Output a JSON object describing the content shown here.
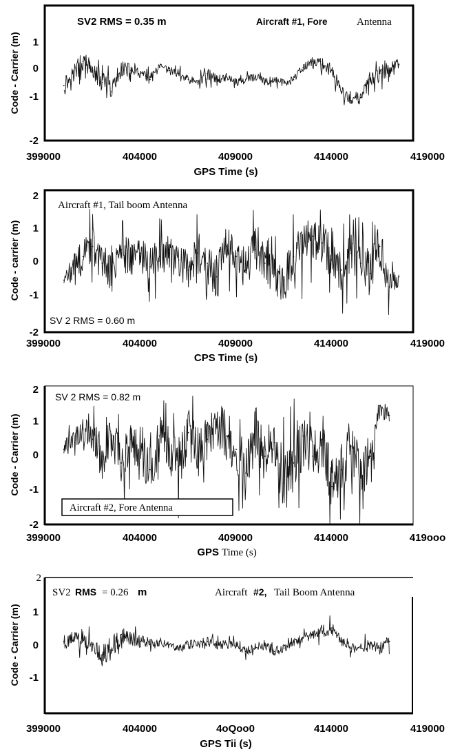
{
  "charts": [
    {
      "note_left": "SV2  RMS = 0.35 m",
      "note_right_prefix": "Aircraft #1, Fore",
      "note_right_suffix": "Antenna",
      "ylabel": "Code - Carrier  (m)",
      "xlabel": "GPS Time (s)",
      "yticks": [
        "-2",
        "-1",
        "0",
        "1"
      ],
      "xticks": [
        "399000",
        "404000",
        "409000",
        "414000",
        "419000"
      ]
    },
    {
      "note_top": "Aircraft #1, Tail boom Antenna",
      "note_bottom": "SV 2  RMS = 0.60 m",
      "ylabel": "Code - carrier (m)",
      "xlabel": "CPS Time (s)",
      "yticks": [
        "-2",
        "-1",
        "0",
        "1",
        "2"
      ],
      "xticks": [
        "399000",
        "404000",
        "409000",
        "414000",
        "419000"
      ]
    },
    {
      "note_top": "SV 2 RMS = 0.82 m",
      "note_box": "Aircraft #2, Fore Antenna",
      "ylabel": "Code - Carrier  (m)",
      "xlabel_prefix": "GPS",
      "xlabel_suffix": "Time (s)",
      "yticks": [
        "-2",
        "-1",
        "0",
        "1",
        "2"
      ],
      "xticks": [
        "399000",
        "404000",
        "409000",
        "414000",
        "419ooo"
      ]
    },
    {
      "note_left_prefix": "SV2",
      "note_left_mid": "RMS",
      "note_left_val": "= 0.26",
      "note_left_unit": "m",
      "note_right_prefix": "Aircraft",
      "note_right_mid": "#2,",
      "note_right_suffix": "Tail Boom Antenna",
      "ylabel": "Code - Carrier (m)",
      "xlabel": "GPS  Tii  (s)",
      "yticks": [
        "-1",
        "0",
        "1",
        "2"
      ],
      "xticks": [
        "399000",
        "404000",
        "4oQoo0",
        "414000",
        "419000"
      ]
    }
  ],
  "chart_data": [
    {
      "type": "line",
      "title": "SV2  RMS = 0.35 m  Aircraft #1, Fore Antenna",
      "xlabel": "GPS Time (s)",
      "ylabel": "Code - Carrier  (m)",
      "xlim": [
        399000,
        419000
      ],
      "ylim": [
        -2,
        2
      ],
      "grid": false,
      "series": [
        {
          "x": [
            400000,
            401000,
            401500,
            402000,
            402500,
            403000,
            403500,
            404000,
            404500,
            405000,
            405500,
            406000,
            406500,
            407000,
            407500,
            408000,
            408500,
            409000,
            409500,
            410000,
            410500,
            411000,
            411500,
            412000,
            412500,
            413000,
            413500,
            414000,
            414500,
            415000,
            415500,
            416000,
            416500,
            417000,
            417500
          ],
          "y": [
            -0.2,
            0.6,
            0.3,
            -0.1,
            -0.4,
            0.4,
            0.3,
            0.2,
            0.0,
            0.4,
            0.3,
            0.2,
            0.0,
            -0.1,
            0.2,
            0.0,
            0.1,
            -0.1,
            0.0,
            0.1,
            -0.1,
            0.0,
            -0.1,
            0.0,
            0.4,
            0.6,
            0.5,
            0.3,
            -0.4,
            -0.7,
            -0.6,
            0.0,
            0.2,
            0.3,
            0.5
          ],
          "spread": [
            0.5,
            0.5,
            0.4,
            0.5,
            0.6,
            0.4,
            0.3,
            0.2,
            0.3,
            0.2,
            0.2,
            0.2,
            0.2,
            0.2,
            0.3,
            0.2,
            0.2,
            0.2,
            0.2,
            0.2,
            0.2,
            0.2,
            0.2,
            0.2,
            0.2,
            0.2,
            0.3,
            0.3,
            0.3,
            0.2,
            0.3,
            0.4,
            0.4,
            0.4,
            0.4
          ]
        }
      ]
    },
    {
      "type": "line",
      "title": "Aircraft #1, Tail boom Antenna  SV 2  RMS = 0.60 m",
      "xlabel": "CPS Time (s)",
      "ylabel": "Code - carrier (m)",
      "xlim": [
        399000,
        419000
      ],
      "ylim": [
        -2,
        2
      ],
      "grid": false,
      "series": [
        {
          "x": [
            400000,
            401000,
            401500,
            402000,
            402500,
            403000,
            403500,
            404000,
            404500,
            405000,
            405500,
            406000,
            406500,
            407000,
            407500,
            408000,
            408500,
            409000,
            409500,
            410000,
            410500,
            411000,
            411500,
            412000,
            412500,
            413000,
            413500,
            414000,
            414500,
            415000,
            415500,
            416000,
            416500,
            417000,
            417500
          ],
          "y": [
            -0.5,
            0.2,
            0.5,
            0.0,
            -0.3,
            0.4,
            0.2,
            0.3,
            -0.1,
            0.2,
            0.4,
            0.1,
            -0.2,
            0.3,
            0.0,
            -0.4,
            0.5,
            0.2,
            -0.2,
            0.4,
            0.0,
            -0.3,
            -0.5,
            0.2,
            0.4,
            0.8,
            0.6,
            0.1,
            -0.2,
            0.3,
            0.0,
            -0.3,
            0.5,
            -0.7,
            -0.4
          ],
          "spread": [
            0.3,
            0.8,
            0.8,
            0.8,
            0.8,
            0.9,
            0.8,
            0.7,
            0.8,
            0.8,
            0.9,
            0.8,
            0.8,
            0.9,
            0.9,
            1.0,
            0.9,
            0.8,
            0.9,
            0.9,
            0.8,
            0.9,
            1.0,
            0.9,
            1.0,
            1.0,
            0.9,
            0.9,
            0.9,
            0.9,
            0.9,
            1.0,
            1.0,
            0.6,
            0.5
          ]
        }
      ]
    },
    {
      "type": "line",
      "title": "SV 2 RMS = 0.82 m  Aircraft #2, Fore Antenna",
      "xlabel": "GPS Time (s)",
      "ylabel": "Code - Carrier  (m)",
      "xlim": [
        399000,
        419000
      ],
      "ylim": [
        -2,
        2
      ],
      "grid": false,
      "series": [
        {
          "x": [
            400000,
            401000,
            401500,
            402000,
            402500,
            403000,
            403500,
            404000,
            404500,
            405000,
            405500,
            406000,
            406500,
            407000,
            407500,
            408000,
            408500,
            409000,
            409500,
            410000,
            410500,
            411000,
            411500,
            412000,
            412500,
            413000,
            413500,
            414000,
            414500,
            415000,
            415500,
            416000,
            416500,
            417000
          ],
          "y": [
            0.2,
            0.8,
            0.5,
            0.0,
            0.6,
            -0.2,
            0.5,
            0.3,
            -0.4,
            0.6,
            0.2,
            -0.3,
            0.7,
            0.0,
            0.5,
            1.0,
            0.6,
            0.2,
            -0.5,
            0.8,
            0.0,
            0.4,
            -0.8,
            -0.2,
            0.6,
            0.0,
            0.5,
            -0.9,
            -0.4,
            0.3,
            -0.6,
            0.0,
            1.5,
            1.2
          ],
          "spread": [
            0.4,
            0.5,
            0.7,
            1.0,
            0.8,
            1.1,
            0.9,
            1.1,
            1.0,
            1.1,
            1.0,
            1.2,
            1.1,
            1.2,
            1.0,
            1.0,
            1.1,
            1.2,
            1.2,
            1.2,
            1.1,
            1.1,
            1.3,
            1.4,
            1.3,
            1.2,
            1.3,
            1.2,
            1.2,
            1.2,
            1.2,
            1.0,
            0.5,
            0.3
          ]
        }
      ]
    },
    {
      "type": "line",
      "title": "SV2 RMS = 0.26 m  Aircraft #2, Tail Boom Antenna",
      "xlabel": "GPS Tii (s)",
      "ylabel": "Code - Carrier (m)",
      "xlim": [
        399000,
        419000
      ],
      "ylim": [
        -2,
        2
      ],
      "grid": false,
      "series": [
        {
          "x": [
            400000,
            401000,
            401500,
            402000,
            402500,
            403000,
            403500,
            404000,
            404500,
            405000,
            405500,
            406000,
            406500,
            407000,
            407500,
            408000,
            408500,
            409000,
            409500,
            410000,
            410500,
            411000,
            411500,
            412000,
            412500,
            413000,
            413500,
            414000,
            414500,
            415000,
            415500,
            416000,
            416500,
            417000
          ],
          "y": [
            0.1,
            0.2,
            0.0,
            -0.3,
            -0.1,
            0.3,
            0.2,
            0.1,
            0.0,
            0.1,
            0.0,
            -0.1,
            0.0,
            0.0,
            0.1,
            0.0,
            0.0,
            0.0,
            -0.2,
            -0.1,
            0.0,
            -0.2,
            -0.1,
            0.1,
            0.2,
            0.3,
            0.4,
            0.5,
            0.1,
            -0.1,
            -0.1,
            0.0,
            -0.1,
            0.1
          ],
          "spread": [
            0.3,
            0.4,
            0.4,
            0.5,
            0.5,
            0.4,
            0.3,
            0.3,
            0.3,
            0.2,
            0.2,
            0.2,
            0.2,
            0.2,
            0.2,
            0.2,
            0.2,
            0.2,
            0.2,
            0.2,
            0.2,
            0.2,
            0.2,
            0.2,
            0.2,
            0.2,
            0.3,
            0.3,
            0.2,
            0.2,
            0.2,
            0.3,
            0.3,
            0.3
          ]
        }
      ]
    }
  ]
}
